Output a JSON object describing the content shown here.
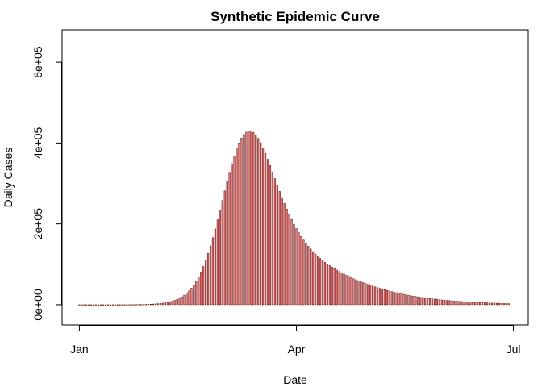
{
  "chart_data": {
    "type": "bar",
    "title": "Synthetic Epidemic Curve",
    "xlabel": "Date",
    "ylabel": "Daily Cases",
    "x_start": "2020-01-01",
    "x_end": "2020-06-30",
    "x_ticks": [
      {
        "date": "2020-01-01",
        "label": "Jan"
      },
      {
        "date": "2020-04-01",
        "label": "Apr"
      },
      {
        "date": "2020-07-01",
        "label": "Jul"
      }
    ],
    "y_ticks": [
      {
        "value": 0,
        "label": "0e+00"
      },
      {
        "value": 200000,
        "label": "2e+05"
      },
      {
        "value": 400000,
        "label": "4e+05"
      },
      {
        "value": 600000,
        "label": "6e+05"
      }
    ],
    "ylim": [
      -50000,
      680000
    ],
    "grid": false,
    "bar_fill": "#f08080",
    "bar_stroke": "#5a0000",
    "values": [
      1,
      2,
      3,
      4,
      5,
      6,
      8,
      10,
      12,
      15,
      19,
      24,
      30,
      37,
      46,
      57,
      71,
      88,
      109,
      135,
      167,
      207,
      256,
      317,
      392,
      485,
      600,
      741,
      915,
      1129,
      1392,
      1716,
      2112,
      2600,
      3196,
      3926,
      4817,
      5904,
      7228,
      8838,
      10790,
      13150,
      15990,
      19400,
      23480,
      28330,
      34080,
      40850,
      48780,
      57980,
      68590,
      80720,
      94450,
      109850,
      126920,
      145620,
      165850,
      187440,
      210140,
      233640,
      257570,
      281520,
      305040,
      327650,
      348890,
      368350,
      385610,
      400350,
      412280,
      421200,
      427000,
      429670,
      429270,
      425950,
      419910,
      411430,
      400810,
      388410,
      374590,
      359700,
      344090,
      328080,
      311950,
      295950,
      280270,
      265060,
      250440,
      236500,
      223290,
      210850,
      199200,
      188330,
      178220,
      168850,
      160170,
      152130,
      144680,
      137770,
      131350,
      125380,
      119810,
      114600,
      109710,
      105110,
      100770,
      96660,
      92760,
      89050,
      85510,
      82120,
      78880,
      75760,
      72770,
      69890,
      67120,
      64450,
      61870,
      59380,
      56980,
      54660,
      52420,
      50260,
      48170,
      46160,
      44220,
      42350,
      40550,
      38810,
      37140,
      35530,
      33980,
      32490,
      31050,
      29670,
      28340,
      27060,
      25840,
      24660,
      23530,
      22450,
      21410,
      20410,
      19460,
      18550,
      17670,
      16840,
      16040,
      15280,
      14550,
      13850,
      13180,
      12550,
      11940,
      11360,
      10810,
      10280,
      9780,
      9300,
      8840,
      8410,
      7990,
      7600,
      7220,
      6860,
      6520,
      6200,
      5890,
      5600,
      5320,
      5050,
      4800,
      4560,
      4330,
      4110,
      3910,
      3710,
      3520,
      3340,
      3170,
      3010,
      2860
    ]
  }
}
